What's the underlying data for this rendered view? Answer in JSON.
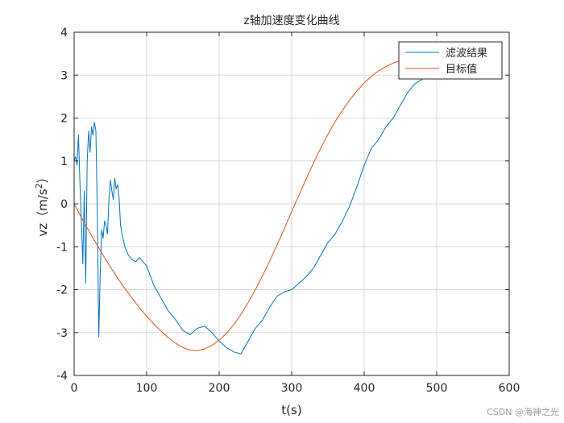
{
  "watermark": "CSDN @海神之光",
  "chart_data": {
    "type": "line",
    "title": "z轴加速度变化曲线",
    "xlabel": "t(s)",
    "ylabel_text": "vz（m/s",
    "ylabel_sup": "2",
    "ylabel_close": "）",
    "xlim": [
      0,
      600
    ],
    "ylim": [
      -4,
      4
    ],
    "xticks": [
      0,
      100,
      200,
      300,
      400,
      500,
      600
    ],
    "yticks": [
      -4,
      -3,
      -2,
      -1,
      0,
      1,
      2,
      3,
      4
    ],
    "grid": true,
    "legend_position": "top-right",
    "colors": {
      "axes": "#262626",
      "grid": "#d9d9d9",
      "filtered": "#0072BD",
      "target": "#D95319"
    },
    "series": [
      {
        "name": "滤波结果",
        "x": [
          0,
          2,
          4,
          6,
          8,
          10,
          12,
          14,
          16,
          18,
          20,
          22,
          24,
          26,
          28,
          30,
          32,
          34,
          36,
          38,
          40,
          42,
          44,
          46,
          48,
          50,
          52,
          54,
          56,
          58,
          60,
          62,
          64,
          66,
          70,
          75,
          80,
          85,
          90,
          100,
          110,
          120,
          130,
          140,
          150,
          160,
          170,
          180,
          190,
          200,
          210,
          220,
          230,
          240,
          250,
          260,
          270,
          280,
          290,
          300,
          310,
          320,
          330,
          340,
          350,
          360,
          370,
          380,
          390,
          400,
          410,
          420,
          430,
          440,
          450,
          460,
          470,
          480
        ],
        "y": [
          1.0,
          1.1,
          0.9,
          1.6,
          0.5,
          -0.4,
          -1.4,
          0.3,
          -1.85,
          1.0,
          1.7,
          1.2,
          1.8,
          1.6,
          1.9,
          1.7,
          -0.2,
          -3.1,
          -1.6,
          -0.6,
          -0.8,
          -0.4,
          -0.5,
          -0.7,
          0.1,
          0.55,
          0.3,
          0.1,
          0.6,
          0.35,
          0.45,
          0.15,
          -0.5,
          -0.7,
          -1.0,
          -1.2,
          -1.3,
          -1.35,
          -1.25,
          -1.45,
          -1.9,
          -2.2,
          -2.5,
          -2.7,
          -2.95,
          -3.05,
          -2.9,
          -2.85,
          -3.0,
          -3.2,
          -3.35,
          -3.45,
          -3.5,
          -3.2,
          -2.9,
          -2.7,
          -2.4,
          -2.15,
          -2.05,
          -2.0,
          -1.85,
          -1.7,
          -1.5,
          -1.2,
          -0.9,
          -0.7,
          -0.4,
          -0.05,
          0.4,
          0.9,
          1.3,
          1.5,
          1.8,
          2.0,
          2.3,
          2.6,
          2.8,
          2.9
        ]
      },
      {
        "name": "目标值",
        "x": [
          0,
          10,
          20,
          30,
          40,
          50,
          60,
          70,
          80,
          90,
          100,
          110,
          120,
          130,
          140,
          150,
          160,
          170,
          180,
          190,
          200,
          210,
          220,
          230,
          240,
          250,
          260,
          270,
          280,
          290,
          300,
          310,
          320,
          330,
          340,
          350,
          360,
          370,
          380,
          390,
          400,
          410,
          420,
          430,
          440,
          450,
          460,
          470,
          480
        ],
        "y": [
          0.0,
          -0.32,
          -0.62,
          -0.91,
          -1.2,
          -1.47,
          -1.73,
          -1.97,
          -2.2,
          -2.42,
          -2.62,
          -2.8,
          -2.97,
          -3.12,
          -3.25,
          -3.35,
          -3.41,
          -3.42,
          -3.38,
          -3.3,
          -3.18,
          -3.02,
          -2.82,
          -2.58,
          -2.3,
          -2.0,
          -1.67,
          -1.32,
          -0.95,
          -0.57,
          -0.18,
          0.2,
          0.58,
          0.95,
          1.3,
          1.62,
          1.92,
          2.18,
          2.42,
          2.63,
          2.82,
          2.97,
          3.1,
          3.2,
          3.28,
          3.34,
          3.4,
          3.44,
          3.46
        ]
      }
    ]
  }
}
